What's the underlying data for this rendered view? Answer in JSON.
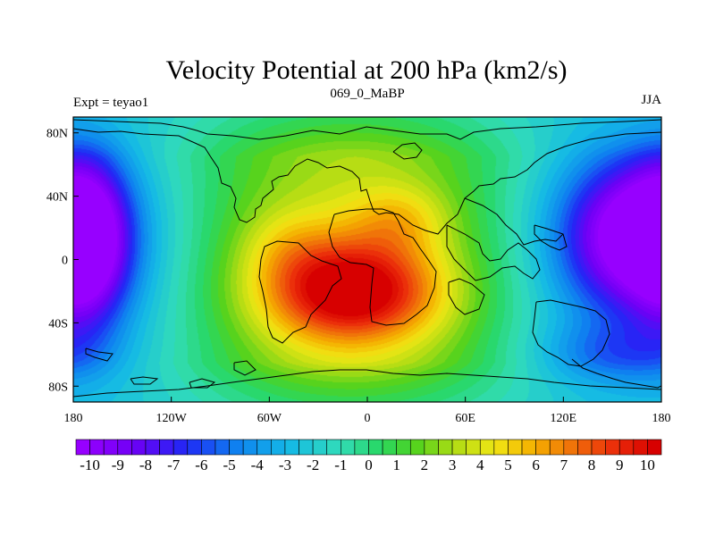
{
  "chart_data": {
    "type": "heatmap",
    "title": "Velocity Potential at 200 hPa (km2/s)",
    "subtitle_left": "Expt = teyao1",
    "subtitle_center": "069_0_MaBP",
    "subtitle_right": "JJA",
    "xlim": [
      -180,
      180
    ],
    "ylim": [
      -90,
      90
    ],
    "xticks": [
      {
        "value": -180,
        "label": "180"
      },
      {
        "value": -120,
        "label": "120W"
      },
      {
        "value": -60,
        "label": "60W"
      },
      {
        "value": 0,
        "label": "0"
      },
      {
        "value": 60,
        "label": "60E"
      },
      {
        "value": 120,
        "label": "120E"
      },
      {
        "value": 180,
        "label": "180"
      }
    ],
    "yticks": [
      {
        "value": 80,
        "label": "80N"
      },
      {
        "value": 40,
        "label": "40N"
      },
      {
        "value": 0,
        "label": "0"
      },
      {
        "value": -40,
        "label": "40S"
      },
      {
        "value": -80,
        "label": "80S"
      }
    ],
    "colorbar": {
      "min": -10.5,
      "max": 10.5,
      "step": 0.5,
      "labels": [
        "-10",
        "-9",
        "-8",
        "-7",
        "-6",
        "-5",
        "-4",
        "-3",
        "-2",
        "-1",
        "0",
        "1",
        "2",
        "3",
        "4",
        "5",
        "6",
        "7",
        "8",
        "9",
        "10"
      ]
    },
    "field_centers": [
      {
        "name": "max",
        "lon": -10,
        "lat": -20,
        "value": 11
      },
      {
        "name": "min",
        "lon": 165,
        "lat": 15,
        "value": -11
      }
    ]
  }
}
